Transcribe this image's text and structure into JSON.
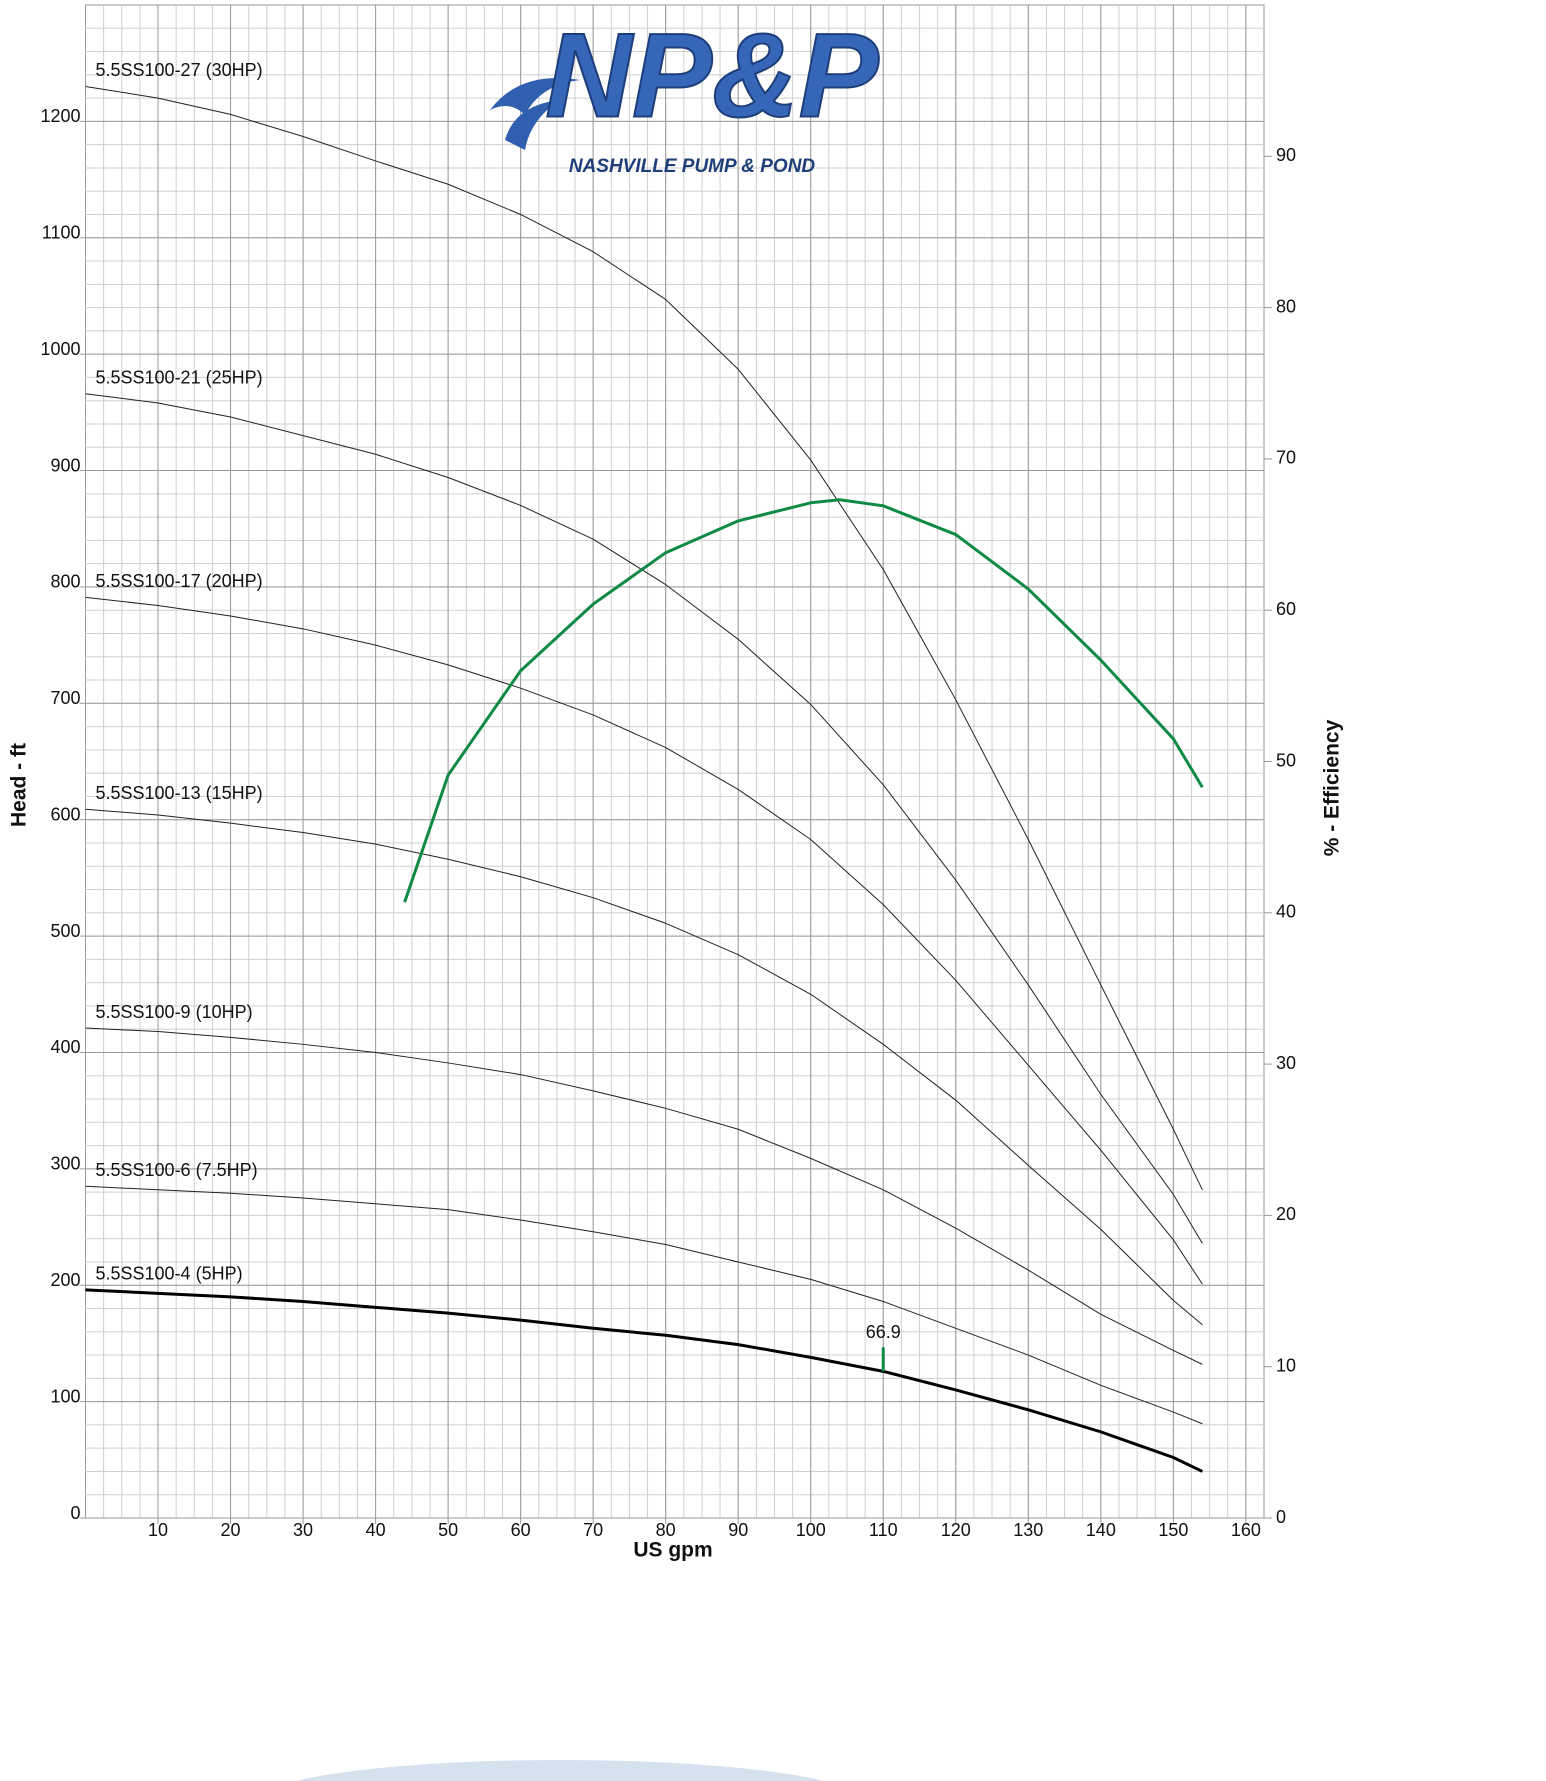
{
  "chart_data": {
    "type": "line",
    "logo": {
      "mark": "NP&P",
      "name": "NASHVILLE PUMP & POND"
    },
    "x_label": "US gpm",
    "y_label": "Head - ft",
    "y2_label": "% - Efficiency",
    "xlim": [
      0,
      162.5
    ],
    "ylim": [
      0,
      1300
    ],
    "y2lim": [
      0,
      100
    ],
    "xticks": [
      10,
      20,
      30,
      40,
      50,
      60,
      70,
      80,
      90,
      100,
      110,
      120,
      130,
      140,
      150,
      160
    ],
    "yticks": [
      0,
      100,
      200,
      300,
      400,
      500,
      600,
      700,
      800,
      900,
      1000,
      1100,
      1200
    ],
    "y2ticks": [
      0,
      10,
      20,
      30,
      40,
      50,
      60,
      70,
      80,
      90
    ],
    "grid": true,
    "x_minor_step": 2.5,
    "y_minor_step": 20,
    "x": [
      0,
      10,
      20,
      30,
      40,
      50,
      60,
      70,
      80,
      90,
      100,
      110,
      120,
      130,
      140,
      150,
      154
    ],
    "series": [
      {
        "name": "5.5SS100-27 (30HP)",
        "color": "#222222",
        "width": 1,
        "values": [
          1230,
          1220,
          1206,
          1187,
          1166,
          1146,
          1120,
          1088,
          1047,
          987,
          909,
          815,
          703,
          583,
          458,
          334,
          282
        ]
      },
      {
        "name": "5.5SS100-21 (25HP)",
        "color": "#222222",
        "width": 1,
        "values": [
          966,
          958,
          946,
          930,
          914,
          894,
          870,
          841,
          802,
          755,
          699,
          630,
          548,
          458,
          364,
          278,
          236
        ]
      },
      {
        "name": "5.5SS100-17 (20HP)",
        "color": "#222222",
        "width": 1,
        "values": [
          791,
          784,
          775,
          764,
          750,
          733,
          713,
          690,
          662,
          626,
          583,
          527,
          462,
          389,
          316,
          239,
          201
        ]
      },
      {
        "name": "5.5SS100-13 (15HP)",
        "color": "#222222",
        "width": 1,
        "values": [
          609,
          604,
          597,
          589,
          579,
          566,
          551,
          533,
          511,
          484,
          450,
          407,
          359,
          303,
          248,
          187,
          166
        ]
      },
      {
        "name": "5.5SS100-9 (10HP)",
        "color": "#222222",
        "width": 1,
        "values": [
          421,
          418,
          413,
          407,
          400,
          391,
          381,
          367,
          352,
          334,
          309,
          282,
          249,
          213,
          175,
          144,
          132
        ]
      },
      {
        "name": "5.5SS100-6 (7.5HP)",
        "color": "#222222",
        "width": 1,
        "values": [
          285,
          282,
          279,
          275,
          270,
          265,
          256,
          246,
          235,
          220,
          205,
          186,
          163,
          140,
          114,
          91,
          81
        ]
      },
      {
        "name": "5.5SS100-4 (5HP)",
        "color": "#000000",
        "width": 3,
        "values": [
          196,
          193,
          190,
          186,
          181,
          176,
          170,
          163,
          157,
          149,
          138,
          126,
          110,
          93,
          74,
          52,
          40
        ]
      },
      {
        "axis": "y2",
        "color": "#0f8a45",
        "width": 3,
        "x": [
          44,
          50,
          60,
          70,
          80,
          90,
          100,
          104,
          110,
          120,
          130,
          140,
          150,
          154
        ],
        "values": [
          40.7,
          49.1,
          56.0,
          60.4,
          63.8,
          65.9,
          67.1,
          67.3,
          66.9,
          65.0,
          61.4,
          56.7,
          51.5,
          48.3
        ]
      }
    ],
    "annotations": [
      {
        "text": "66.9",
        "x": 110,
        "series": 6,
        "color": "#0f8a45"
      }
    ]
  }
}
